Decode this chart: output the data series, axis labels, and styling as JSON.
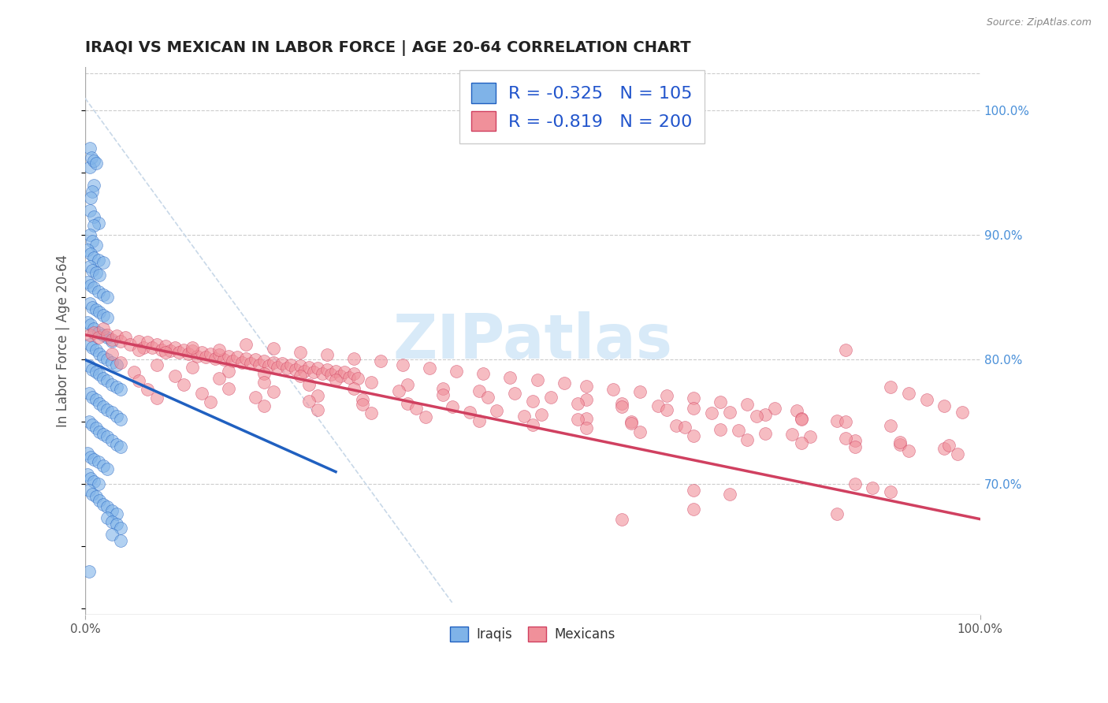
{
  "title": "IRAQI VS MEXICAN IN LABOR FORCE | AGE 20-64 CORRELATION CHART",
  "source_text": "Source: ZipAtlas.com",
  "ylabel": "In Labor Force | Age 20-64",
  "xlim": [
    0.0,
    1.0
  ],
  "ylim": [
    0.595,
    1.035
  ],
  "y_tick_right_labels": [
    "70.0%",
    "80.0%",
    "90.0%",
    "100.0%"
  ],
  "y_tick_right_values": [
    0.7,
    0.8,
    0.9,
    1.0
  ],
  "legend_text_iraqi": "R = -0.325   N = 105",
  "legend_text_mexican": "R = -0.819   N = 200",
  "legend_label_iraqi": "Iraqis",
  "legend_label_mexican": "Mexicans",
  "color_iraqi_scatter": "#7fb3e8",
  "color_mexican_scatter": "#f0909a",
  "color_iraqi_line": "#2060c0",
  "color_mexican_line": "#d04060",
  "color_diagonal": "#c8d8e8",
  "color_legend_text_blue": "#2255cc",
  "color_right_axis": "#4a90d9",
  "watermark_text": "ZIPatlas",
  "watermark_color": "#d8eaf8",
  "background_color": "#ffffff",
  "iraqi_trendline": [
    [
      0.0,
      0.8
    ],
    [
      0.28,
      0.71
    ]
  ],
  "mexican_trendline": [
    [
      0.0,
      0.82
    ],
    [
      1.0,
      0.672
    ]
  ],
  "diagonal_line": [
    [
      0.0,
      1.01
    ],
    [
      0.41,
      0.605
    ]
  ],
  "iraqi_points": [
    [
      0.005,
      0.97
    ],
    [
      0.005,
      0.955
    ],
    [
      0.007,
      0.962
    ],
    [
      0.01,
      0.96
    ],
    [
      0.012,
      0.958
    ],
    [
      0.01,
      0.94
    ],
    [
      0.008,
      0.935
    ],
    [
      0.006,
      0.93
    ],
    [
      0.005,
      0.92
    ],
    [
      0.01,
      0.915
    ],
    [
      0.015,
      0.91
    ],
    [
      0.01,
      0.908
    ],
    [
      0.005,
      0.9
    ],
    [
      0.008,
      0.895
    ],
    [
      0.012,
      0.892
    ],
    [
      0.003,
      0.888
    ],
    [
      0.006,
      0.885
    ],
    [
      0.01,
      0.882
    ],
    [
      0.015,
      0.88
    ],
    [
      0.02,
      0.878
    ],
    [
      0.005,
      0.875
    ],
    [
      0.008,
      0.872
    ],
    [
      0.012,
      0.87
    ],
    [
      0.016,
      0.868
    ],
    [
      0.003,
      0.862
    ],
    [
      0.006,
      0.86
    ],
    [
      0.01,
      0.858
    ],
    [
      0.015,
      0.855
    ],
    [
      0.02,
      0.852
    ],
    [
      0.025,
      0.85
    ],
    [
      0.005,
      0.845
    ],
    [
      0.008,
      0.842
    ],
    [
      0.012,
      0.84
    ],
    [
      0.016,
      0.838
    ],
    [
      0.02,
      0.836
    ],
    [
      0.025,
      0.834
    ],
    [
      0.003,
      0.83
    ],
    [
      0.006,
      0.828
    ],
    [
      0.01,
      0.825
    ],
    [
      0.015,
      0.822
    ],
    [
      0.02,
      0.82
    ],
    [
      0.025,
      0.818
    ],
    [
      0.03,
      0.815
    ],
    [
      0.005,
      0.812
    ],
    [
      0.008,
      0.81
    ],
    [
      0.012,
      0.808
    ],
    [
      0.016,
      0.805
    ],
    [
      0.02,
      0.802
    ],
    [
      0.025,
      0.8
    ],
    [
      0.03,
      0.798
    ],
    [
      0.035,
      0.796
    ],
    [
      0.004,
      0.795
    ],
    [
      0.008,
      0.792
    ],
    [
      0.012,
      0.79
    ],
    [
      0.016,
      0.788
    ],
    [
      0.02,
      0.785
    ],
    [
      0.025,
      0.783
    ],
    [
      0.03,
      0.78
    ],
    [
      0.035,
      0.778
    ],
    [
      0.04,
      0.776
    ],
    [
      0.004,
      0.773
    ],
    [
      0.008,
      0.77
    ],
    [
      0.012,
      0.768
    ],
    [
      0.016,
      0.765
    ],
    [
      0.02,
      0.762
    ],
    [
      0.025,
      0.76
    ],
    [
      0.03,
      0.758
    ],
    [
      0.035,
      0.755
    ],
    [
      0.04,
      0.752
    ],
    [
      0.004,
      0.75
    ],
    [
      0.008,
      0.748
    ],
    [
      0.012,
      0.745
    ],
    [
      0.016,
      0.742
    ],
    [
      0.02,
      0.74
    ],
    [
      0.025,
      0.738
    ],
    [
      0.03,
      0.735
    ],
    [
      0.035,
      0.732
    ],
    [
      0.04,
      0.73
    ],
    [
      0.003,
      0.725
    ],
    [
      0.006,
      0.722
    ],
    [
      0.01,
      0.72
    ],
    [
      0.015,
      0.718
    ],
    [
      0.02,
      0.715
    ],
    [
      0.025,
      0.712
    ],
    [
      0.003,
      0.708
    ],
    [
      0.006,
      0.705
    ],
    [
      0.01,
      0.702
    ],
    [
      0.015,
      0.7
    ],
    [
      0.004,
      0.695
    ],
    [
      0.008,
      0.692
    ],
    [
      0.012,
      0.69
    ],
    [
      0.016,
      0.687
    ],
    [
      0.02,
      0.684
    ],
    [
      0.025,
      0.682
    ],
    [
      0.03,
      0.679
    ],
    [
      0.035,
      0.676
    ],
    [
      0.025,
      0.673
    ],
    [
      0.03,
      0.67
    ],
    [
      0.035,
      0.668
    ],
    [
      0.04,
      0.665
    ],
    [
      0.03,
      0.66
    ],
    [
      0.04,
      0.655
    ],
    [
      0.004,
      0.63
    ]
  ],
  "mexican_points": [
    [
      0.005,
      0.82
    ],
    [
      0.01,
      0.822
    ],
    [
      0.015,
      0.818
    ],
    [
      0.02,
      0.825
    ],
    [
      0.025,
      0.82
    ],
    [
      0.03,
      0.816
    ],
    [
      0.035,
      0.819
    ],
    [
      0.04,
      0.815
    ],
    [
      0.045,
      0.818
    ],
    [
      0.05,
      0.812
    ],
    [
      0.06,
      0.815
    ],
    [
      0.065,
      0.81
    ],
    [
      0.07,
      0.814
    ],
    [
      0.075,
      0.81
    ],
    [
      0.08,
      0.812
    ],
    [
      0.085,
      0.808
    ],
    [
      0.09,
      0.811
    ],
    [
      0.095,
      0.807
    ],
    [
      0.1,
      0.81
    ],
    [
      0.105,
      0.806
    ],
    [
      0.11,
      0.808
    ],
    [
      0.115,
      0.805
    ],
    [
      0.12,
      0.807
    ],
    [
      0.125,
      0.803
    ],
    [
      0.13,
      0.806
    ],
    [
      0.135,
      0.802
    ],
    [
      0.14,
      0.805
    ],
    [
      0.145,
      0.801
    ],
    [
      0.15,
      0.804
    ],
    [
      0.155,
      0.8
    ],
    [
      0.16,
      0.803
    ],
    [
      0.165,
      0.799
    ],
    [
      0.17,
      0.802
    ],
    [
      0.175,
      0.798
    ],
    [
      0.18,
      0.801
    ],
    [
      0.185,
      0.797
    ],
    [
      0.19,
      0.8
    ],
    [
      0.195,
      0.796
    ],
    [
      0.2,
      0.799
    ],
    [
      0.205,
      0.795
    ],
    [
      0.21,
      0.798
    ],
    [
      0.215,
      0.794
    ],
    [
      0.22,
      0.797
    ],
    [
      0.225,
      0.793
    ],
    [
      0.23,
      0.796
    ],
    [
      0.235,
      0.792
    ],
    [
      0.24,
      0.795
    ],
    [
      0.245,
      0.791
    ],
    [
      0.25,
      0.794
    ],
    [
      0.255,
      0.79
    ],
    [
      0.26,
      0.793
    ],
    [
      0.265,
      0.789
    ],
    [
      0.27,
      0.792
    ],
    [
      0.275,
      0.788
    ],
    [
      0.28,
      0.791
    ],
    [
      0.285,
      0.787
    ],
    [
      0.29,
      0.79
    ],
    [
      0.295,
      0.786
    ],
    [
      0.3,
      0.789
    ],
    [
      0.305,
      0.785
    ],
    [
      0.03,
      0.805
    ],
    [
      0.06,
      0.808
    ],
    [
      0.09,
      0.806
    ],
    [
      0.12,
      0.81
    ],
    [
      0.15,
      0.808
    ],
    [
      0.18,
      0.812
    ],
    [
      0.21,
      0.809
    ],
    [
      0.24,
      0.806
    ],
    [
      0.27,
      0.804
    ],
    [
      0.3,
      0.801
    ],
    [
      0.33,
      0.799
    ],
    [
      0.355,
      0.796
    ],
    [
      0.385,
      0.793
    ],
    [
      0.415,
      0.791
    ],
    [
      0.445,
      0.789
    ],
    [
      0.475,
      0.786
    ],
    [
      0.505,
      0.784
    ],
    [
      0.535,
      0.781
    ],
    [
      0.56,
      0.779
    ],
    [
      0.59,
      0.776
    ],
    [
      0.62,
      0.774
    ],
    [
      0.65,
      0.771
    ],
    [
      0.68,
      0.769
    ],
    [
      0.71,
      0.766
    ],
    [
      0.74,
      0.764
    ],
    [
      0.77,
      0.761
    ],
    [
      0.795,
      0.759
    ],
    [
      0.04,
      0.798
    ],
    [
      0.08,
      0.796
    ],
    [
      0.12,
      0.794
    ],
    [
      0.16,
      0.791
    ],
    [
      0.2,
      0.789
    ],
    [
      0.24,
      0.787
    ],
    [
      0.28,
      0.784
    ],
    [
      0.32,
      0.782
    ],
    [
      0.36,
      0.78
    ],
    [
      0.4,
      0.777
    ],
    [
      0.44,
      0.775
    ],
    [
      0.48,
      0.773
    ],
    [
      0.52,
      0.77
    ],
    [
      0.56,
      0.768
    ],
    [
      0.6,
      0.765
    ],
    [
      0.64,
      0.763
    ],
    [
      0.68,
      0.761
    ],
    [
      0.72,
      0.758
    ],
    [
      0.76,
      0.756
    ],
    [
      0.8,
      0.753
    ],
    [
      0.84,
      0.751
    ],
    [
      0.055,
      0.79
    ],
    [
      0.1,
      0.787
    ],
    [
      0.15,
      0.785
    ],
    [
      0.2,
      0.782
    ],
    [
      0.25,
      0.78
    ],
    [
      0.3,
      0.777
    ],
    [
      0.35,
      0.775
    ],
    [
      0.4,
      0.772
    ],
    [
      0.45,
      0.77
    ],
    [
      0.5,
      0.767
    ],
    [
      0.55,
      0.765
    ],
    [
      0.6,
      0.762
    ],
    [
      0.65,
      0.76
    ],
    [
      0.7,
      0.757
    ],
    [
      0.75,
      0.755
    ],
    [
      0.8,
      0.752
    ],
    [
      0.85,
      0.75
    ],
    [
      0.9,
      0.747
    ],
    [
      0.06,
      0.783
    ],
    [
      0.11,
      0.78
    ],
    [
      0.16,
      0.777
    ],
    [
      0.21,
      0.774
    ],
    [
      0.26,
      0.771
    ],
    [
      0.31,
      0.768
    ],
    [
      0.36,
      0.765
    ],
    [
      0.41,
      0.762
    ],
    [
      0.46,
      0.759
    ],
    [
      0.51,
      0.756
    ],
    [
      0.56,
      0.753
    ],
    [
      0.61,
      0.75
    ],
    [
      0.66,
      0.747
    ],
    [
      0.71,
      0.744
    ],
    [
      0.76,
      0.741
    ],
    [
      0.81,
      0.738
    ],
    [
      0.86,
      0.735
    ],
    [
      0.91,
      0.732
    ],
    [
      0.96,
      0.729
    ],
    [
      0.07,
      0.776
    ],
    [
      0.13,
      0.773
    ],
    [
      0.19,
      0.77
    ],
    [
      0.25,
      0.767
    ],
    [
      0.31,
      0.764
    ],
    [
      0.37,
      0.761
    ],
    [
      0.43,
      0.758
    ],
    [
      0.49,
      0.755
    ],
    [
      0.55,
      0.752
    ],
    [
      0.61,
      0.749
    ],
    [
      0.67,
      0.746
    ],
    [
      0.73,
      0.743
    ],
    [
      0.79,
      0.74
    ],
    [
      0.85,
      0.737
    ],
    [
      0.91,
      0.734
    ],
    [
      0.965,
      0.731
    ],
    [
      0.08,
      0.769
    ],
    [
      0.14,
      0.766
    ],
    [
      0.2,
      0.763
    ],
    [
      0.26,
      0.76
    ],
    [
      0.32,
      0.757
    ],
    [
      0.38,
      0.754
    ],
    [
      0.44,
      0.751
    ],
    [
      0.5,
      0.748
    ],
    [
      0.56,
      0.745
    ],
    [
      0.62,
      0.742
    ],
    [
      0.68,
      0.739
    ],
    [
      0.74,
      0.736
    ],
    [
      0.8,
      0.733
    ],
    [
      0.86,
      0.73
    ],
    [
      0.92,
      0.727
    ],
    [
      0.975,
      0.724
    ],
    [
      0.85,
      0.808
    ],
    [
      0.9,
      0.778
    ],
    [
      0.92,
      0.773
    ],
    [
      0.94,
      0.768
    ],
    [
      0.96,
      0.763
    ],
    [
      0.98,
      0.758
    ],
    [
      0.86,
      0.7
    ],
    [
      0.88,
      0.697
    ],
    [
      0.9,
      0.694
    ],
    [
      0.68,
      0.695
    ],
    [
      0.72,
      0.692
    ],
    [
      0.68,
      0.68
    ],
    [
      0.84,
      0.676
    ],
    [
      0.6,
      0.672
    ]
  ]
}
